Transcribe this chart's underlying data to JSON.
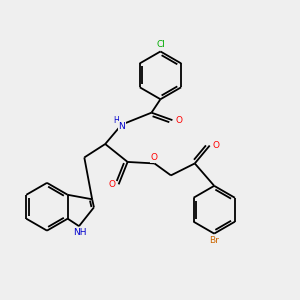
{
  "background_color": "#efefef",
  "bond_color": "#000000",
  "atom_colors": {
    "N": "#0000cc",
    "O": "#ff0000",
    "Cl": "#00aa00",
    "Br": "#cc6600",
    "H": "#000000",
    "C": "#000000"
  },
  "figsize": [
    3.0,
    3.0
  ],
  "dpi": 100
}
